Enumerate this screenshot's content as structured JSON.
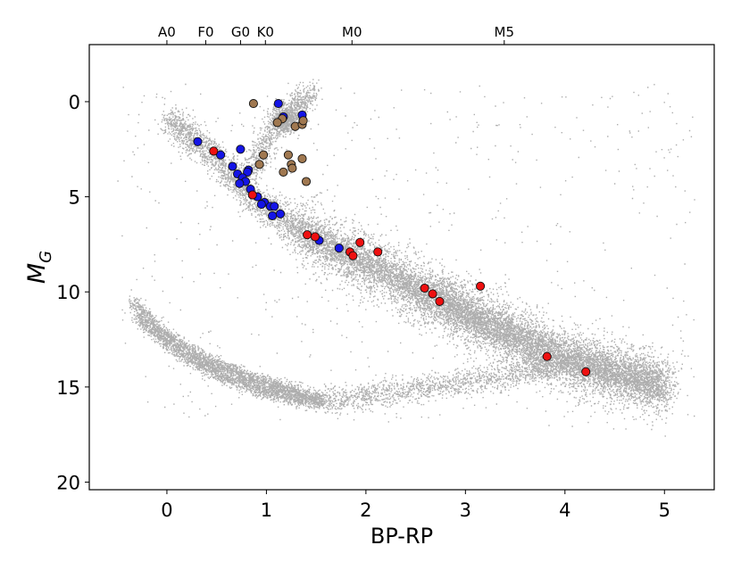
{
  "chart_data": {
    "type": "scatter",
    "title": "",
    "xlabel": "BP-RP",
    "ylabel": "M",
    "ylabel_subscript": "G",
    "xlim": [
      -0.78,
      5.5
    ],
    "ylim": [
      20.4,
      -3.0
    ],
    "y_inverted": true,
    "grid": false,
    "legend": "none",
    "x_ticks": [
      0,
      1,
      2,
      3,
      4,
      5
    ],
    "y_ticks": [
      0,
      5,
      10,
      15,
      20
    ],
    "top_axis": {
      "ticks": [
        {
          "label": "A0",
          "x": 0.0
        },
        {
          "label": "F0",
          "x": 0.39
        },
        {
          "label": "G0",
          "x": 0.74
        },
        {
          "label": "K0",
          "x": 0.99
        },
        {
          "label": "M0",
          "x": 1.86
        },
        {
          "label": "M5",
          "x": 3.39
        }
      ]
    },
    "background": {
      "name": "field stars",
      "color": "#6b6b6b",
      "main_sequence": [
        [
          0.0,
          0.8
        ],
        [
          0.3,
          2.1
        ],
        [
          0.5,
          3.0
        ],
        [
          0.7,
          4.2
        ],
        [
          0.9,
          5.2
        ],
        [
          1.1,
          5.9
        ],
        [
          1.3,
          6.6
        ],
        [
          1.6,
          7.5
        ],
        [
          2.0,
          8.5
        ],
        [
          2.5,
          9.8
        ],
        [
          3.0,
          11.1
        ],
        [
          3.5,
          12.4
        ],
        [
          4.0,
          13.6
        ],
        [
          4.5,
          14.2
        ],
        [
          5.0,
          15.0
        ]
      ],
      "white_dwarf_upper": [
        [
          -0.35,
          10.5
        ],
        [
          0.0,
          12.3
        ],
        [
          0.4,
          13.6
        ],
        [
          0.8,
          14.4
        ],
        [
          1.2,
          15.1
        ],
        [
          1.55,
          15.6
        ]
      ],
      "white_dwarf_lower": [
        [
          -0.3,
          11.3
        ],
        [
          0.1,
          13.1
        ],
        [
          0.5,
          14.3
        ],
        [
          0.9,
          15.1
        ],
        [
          1.3,
          15.6
        ],
        [
          1.55,
          15.8
        ]
      ],
      "giant_branch": [
        [
          0.85,
          3.6
        ],
        [
          0.95,
          2.6
        ],
        [
          1.05,
          1.4
        ],
        [
          1.15,
          0.7
        ],
        [
          1.3,
          0.2
        ],
        [
          1.45,
          -0.6
        ]
      ],
      "red_clump": [
        1.2,
        0.95
      ]
    },
    "series": [
      {
        "color": "#1414e6",
        "x": [
          1.17,
          1.36,
          1.12,
          0.31,
          0.54,
          0.66,
          0.74,
          0.82,
          0.81,
          0.71,
          0.76,
          0.79,
          0.73,
          0.84,
          0.91,
          0.98,
          0.95,
          1.04,
          1.08,
          1.14,
          1.06,
          1.53,
          1.73
        ],
        "y": [
          0.8,
          0.7,
          0.1,
          2.1,
          2.8,
          3.4,
          2.5,
          3.6,
          3.7,
          3.8,
          4.0,
          4.2,
          4.3,
          4.6,
          5.0,
          5.3,
          5.4,
          5.5,
          5.5,
          5.9,
          6.0,
          7.3,
          7.7
        ]
      },
      {
        "color": "#a07850",
        "x": [
          0.87,
          1.16,
          1.11,
          1.29,
          1.36,
          1.37,
          0.97,
          0.93,
          1.22,
          1.25,
          1.36,
          1.26,
          1.17,
          1.4
        ],
        "y": [
          0.1,
          0.9,
          1.1,
          1.3,
          1.2,
          1.0,
          2.8,
          3.3,
          2.8,
          3.3,
          3.0,
          3.5,
          3.7,
          4.2
        ]
      },
      {
        "color": "#ee1010",
        "x": [
          0.47,
          0.86,
          1.41,
          1.49,
          1.94,
          1.84,
          1.87,
          2.12,
          2.59,
          2.67,
          2.74,
          3.15,
          3.82,
          4.21
        ],
        "y": [
          2.6,
          4.9,
          7.0,
          7.1,
          7.4,
          7.9,
          8.1,
          7.9,
          9.8,
          10.1,
          10.5,
          9.7,
          13.4,
          14.2
        ]
      }
    ]
  }
}
